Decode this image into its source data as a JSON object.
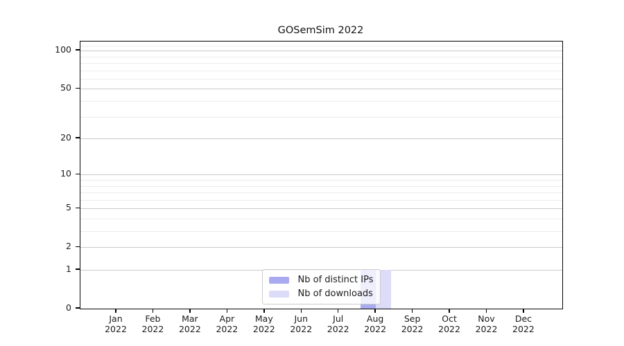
{
  "chart_data": {
    "type": "bar",
    "title": "GOSemSim 2022",
    "categories": [
      "Jan",
      "Feb",
      "Mar",
      "Apr",
      "May",
      "Jun",
      "Jul",
      "Aug",
      "Sep",
      "Oct",
      "Nov",
      "Dec"
    ],
    "year": "2022",
    "series": [
      {
        "name": "Nb of distinct IPs",
        "color": "#aaaaf0",
        "values": [
          0,
          0,
          0,
          0,
          0,
          0,
          0,
          1,
          0,
          0,
          0,
          0
        ]
      },
      {
        "name": "Nb of downloads",
        "color": "#dcdcf8",
        "values": [
          0,
          0,
          0,
          0,
          0,
          0,
          0,
          1,
          0,
          0,
          0,
          0
        ]
      }
    ],
    "y_axis": {
      "scale": "log1p",
      "major_ticks": [
        0,
        1,
        2,
        5,
        10,
        20,
        50,
        100
      ],
      "minor_ticks": [
        3,
        4,
        6,
        7,
        8,
        9,
        30,
        40,
        60,
        70,
        80,
        90,
        110
      ],
      "max": 118
    },
    "x_axis": {
      "tick_label_format": "month over year"
    },
    "legend": {
      "position": "lower center"
    },
    "grid": {
      "major_color": "#c9c9c9",
      "minor_color": "#ececec"
    },
    "frame_color": "#000000",
    "background": "#ffffff"
  }
}
